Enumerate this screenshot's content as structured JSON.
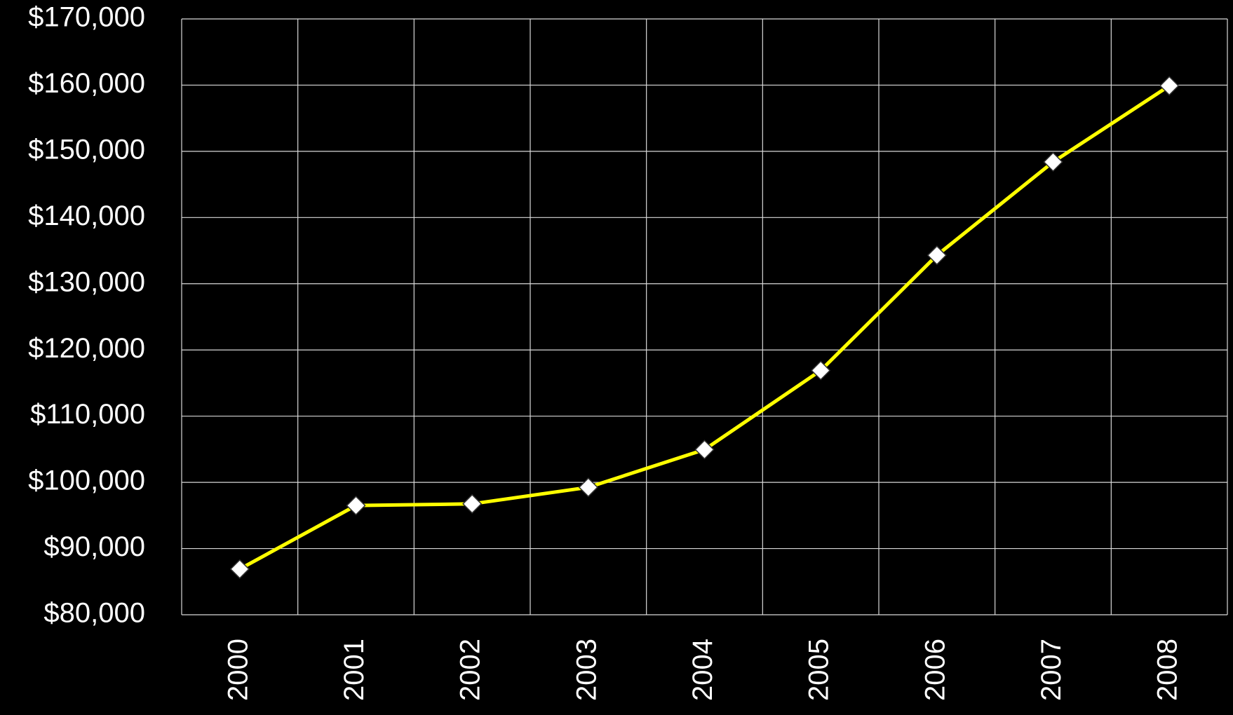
{
  "chart_data": {
    "type": "line",
    "categories": [
      "2000",
      "2001",
      "2002",
      "2003",
      "2004",
      "2005",
      "2006",
      "2007",
      "2008"
    ],
    "values": [
      86900,
      96500,
      96750,
      99250,
      104950,
      116900,
      134300,
      148400,
      159900
    ],
    "color": "#ffff00",
    "ylim": [
      80000,
      170000
    ],
    "yticks": [
      {
        "value": 80000,
        "label": "$80,000"
      },
      {
        "value": 90000,
        "label": "$90,000"
      },
      {
        "value": 100000,
        "label": "$100,000"
      },
      {
        "value": 110000,
        "label": "$110,000"
      },
      {
        "value": 120000,
        "label": "$120,000"
      },
      {
        "value": 130000,
        "label": "$130,000"
      },
      {
        "value": 140000,
        "label": "$140,000"
      },
      {
        "value": 150000,
        "label": "$150,000"
      },
      {
        "value": 160000,
        "label": "$160,000"
      },
      {
        "value": 170000,
        "label": "$170,000"
      }
    ],
    "grid": true
  }
}
